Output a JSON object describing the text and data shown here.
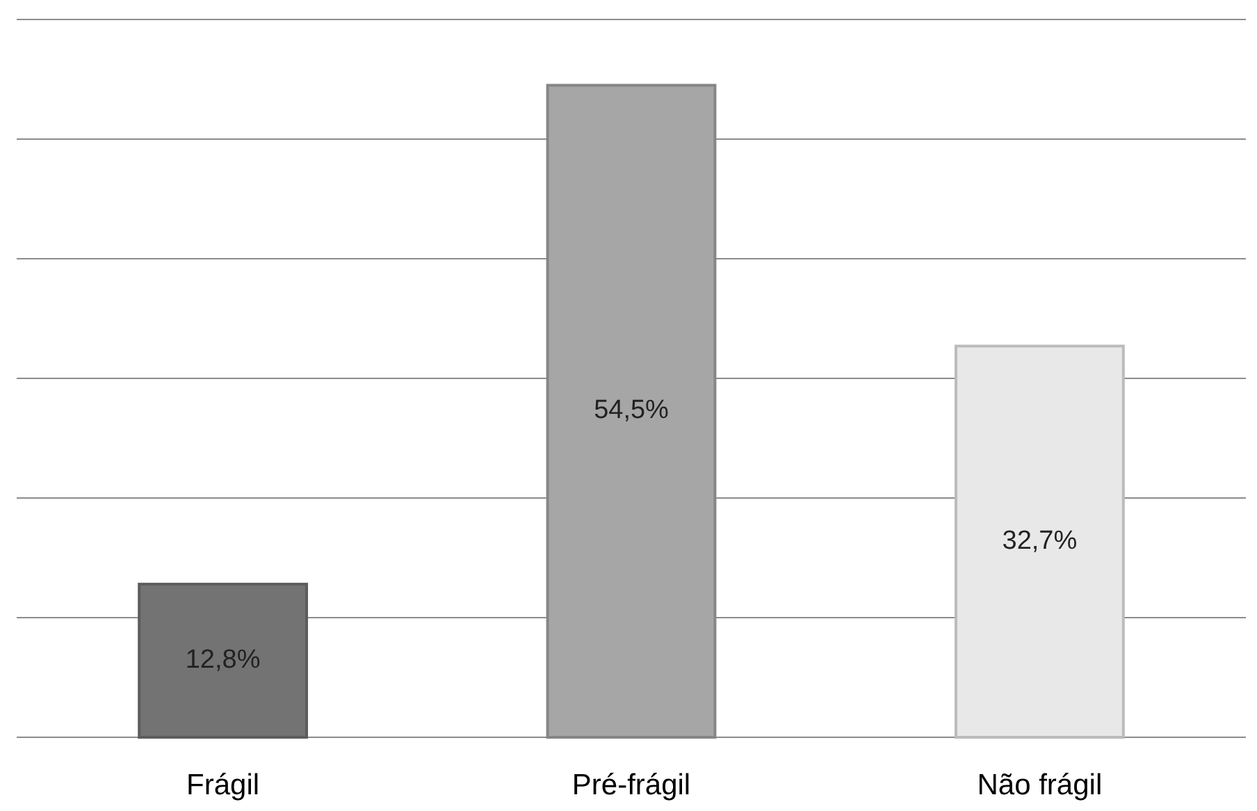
{
  "chart_data": {
    "type": "bar",
    "categories": [
      "Frágil",
      "Pré-frágil",
      "Não frágil"
    ],
    "values": [
      12.8,
      54.5,
      32.7
    ],
    "colors": [
      "#737373",
      "#a6a6a6",
      "#e8e8e8"
    ],
    "value_labels": [
      "12,8%",
      "54,5%",
      "32,7%"
    ],
    "ylim": [
      0,
      60
    ],
    "yticks": [
      {
        "value": 0,
        "label": null
      },
      {
        "value": 10,
        "label": null
      },
      {
        "value": 20,
        "label": null
      },
      {
        "value": 30,
        "label": null
      },
      {
        "value": 40,
        "label": null
      },
      {
        "value": 50,
        "label": null
      },
      {
        "value": 60,
        "label": null
      }
    ],
    "grid": "y",
    "tick_labels": "x"
  }
}
